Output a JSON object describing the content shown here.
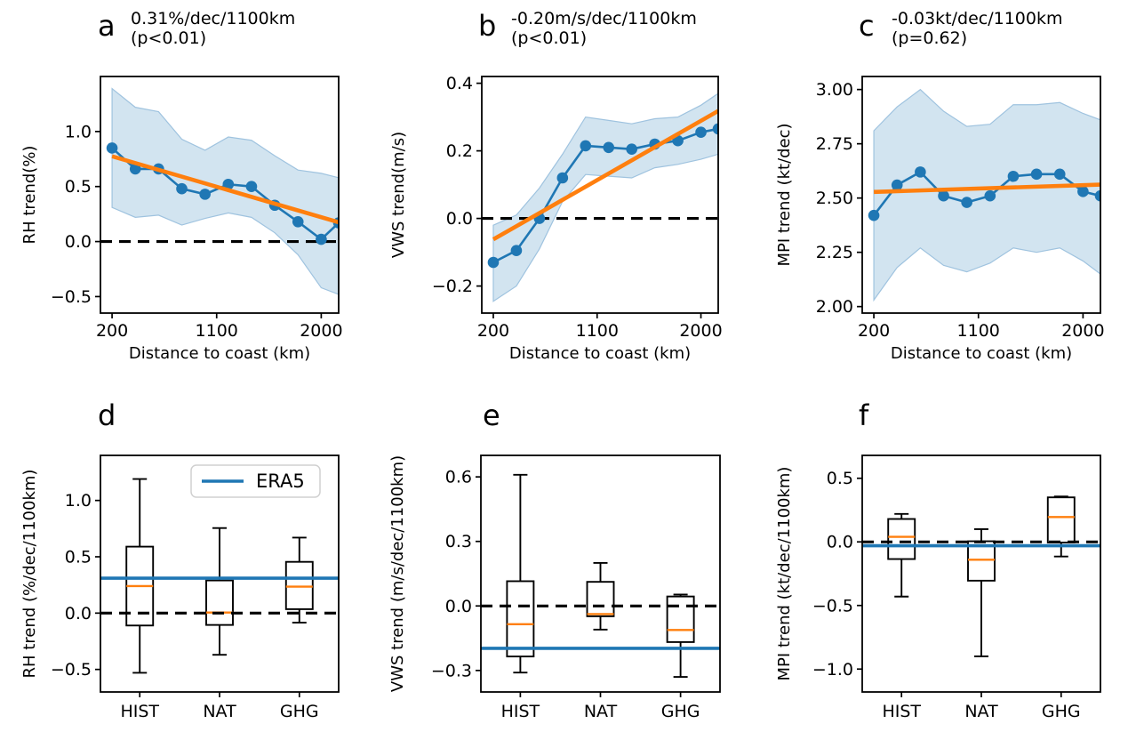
{
  "figure": {
    "panels": [
      {
        "id": "a",
        "letter": "a",
        "title_line1": "0.31%/dec/1100km",
        "title_line2": "(p<0.01)"
      },
      {
        "id": "b",
        "letter": "b",
        "title_line1": "-0.20m/s/dec/1100km",
        "title_line2": "(p<0.01)"
      },
      {
        "id": "c",
        "letter": "c",
        "title_line1": "-0.03kt/dec/1100km",
        "title_line2": "(p=0.62)"
      },
      {
        "id": "d",
        "letter": "d"
      },
      {
        "id": "e",
        "letter": "e"
      },
      {
        "id": "f",
        "letter": "f"
      }
    ]
  },
  "colors": {
    "blue": "#1f77b4",
    "orange": "#ff7f0e",
    "band_fill": "#d2e4f0",
    "band_edge": "#9fc3df",
    "black": "#000000",
    "legend_border": "#d0d0d0"
  },
  "chart_data": [
    {
      "panel": "a",
      "type": "line",
      "title": "0.31%/dec/1100km (p<0.01)",
      "xlabel": "Distance to coast (km)",
      "ylabel": "RH trend(%)",
      "x": [
        200,
        400,
        600,
        800,
        1000,
        1200,
        1400,
        1600,
        1800,
        2000,
        2150
      ],
      "y": [
        0.85,
        0.66,
        0.66,
        0.48,
        0.43,
        0.52,
        0.5,
        0.33,
        0.18,
        0.02,
        0.17
      ],
      "band_upper": [
        1.39,
        1.22,
        1.18,
        0.93,
        0.83,
        0.95,
        0.92,
        0.78,
        0.65,
        0.62,
        0.58
      ],
      "band_lower": [
        0.31,
        0.22,
        0.24,
        0.15,
        0.21,
        0.26,
        0.22,
        0.08,
        -0.12,
        -0.42,
        -0.48
      ],
      "trend_line": {
        "x": [
          200,
          2150
        ],
        "y": [
          0.775,
          0.175
        ]
      },
      "dashed_zero": 0,
      "xlim": [
        100,
        2150
      ],
      "ylim": [
        -0.65,
        1.5
      ],
      "xticks": [
        {
          "v": 200,
          "label": "200"
        },
        {
          "v": 1100,
          "label": "1100"
        },
        {
          "v": 2000,
          "label": "2000"
        }
      ],
      "yticks": [
        {
          "v": 1.0,
          "label": "1.0"
        },
        {
          "v": 0.5,
          "label": "0.5"
        },
        {
          "v": 0.0,
          "label": "0.0"
        },
        {
          "v": -0.5,
          "label": "−0.5"
        }
      ]
    },
    {
      "panel": "b",
      "type": "line",
      "title": "-0.20m/s/dec/1100km (p<0.01)",
      "xlabel": "Distance to coast (km)",
      "ylabel": "VWS trend(m/s)",
      "x": [
        200,
        400,
        600,
        800,
        1000,
        1200,
        1400,
        1600,
        1800,
        2000,
        2150
      ],
      "y": [
        -0.13,
        -0.095,
        0.0,
        0.12,
        0.215,
        0.21,
        0.205,
        0.22,
        0.23,
        0.255,
        0.265
      ],
      "band_upper": [
        -0.02,
        0.01,
        0.09,
        0.19,
        0.3,
        0.29,
        0.28,
        0.295,
        0.3,
        0.335,
        0.37
      ],
      "band_lower": [
        -0.245,
        -0.2,
        -0.09,
        0.05,
        0.13,
        0.125,
        0.12,
        0.15,
        0.16,
        0.175,
        0.19
      ],
      "trend_line": {
        "x": [
          200,
          2150
        ],
        "y": [
          -0.062,
          0.318
        ]
      },
      "dashed_zero": 0,
      "xlim": [
        100,
        2150
      ],
      "ylim": [
        -0.28,
        0.42
      ],
      "xticks": [
        {
          "v": 200,
          "label": "200"
        },
        {
          "v": 1100,
          "label": "1100"
        },
        {
          "v": 2000,
          "label": "2000"
        }
      ],
      "yticks": [
        {
          "v": 0.4,
          "label": "0.4"
        },
        {
          "v": 0.2,
          "label": "0.2"
        },
        {
          "v": 0.0,
          "label": "0.0"
        },
        {
          "v": -0.2,
          "label": "−0.2"
        }
      ]
    },
    {
      "panel": "c",
      "type": "line",
      "title": "-0.03kt/dec/1100km (p=0.62)",
      "xlabel": "Distance to coast (km)",
      "ylabel": "MPI trend (kt/dec)",
      "x": [
        200,
        400,
        600,
        800,
        1000,
        1200,
        1400,
        1600,
        1800,
        2000,
        2150
      ],
      "y": [
        2.42,
        2.56,
        2.62,
        2.51,
        2.48,
        2.51,
        2.6,
        2.61,
        2.61,
        2.53,
        2.51
      ],
      "band_upper": [
        2.81,
        2.92,
        3.0,
        2.9,
        2.83,
        2.84,
        2.93,
        2.93,
        2.94,
        2.89,
        2.86
      ],
      "band_lower": [
        2.03,
        2.18,
        2.27,
        2.19,
        2.16,
        2.2,
        2.27,
        2.25,
        2.27,
        2.21,
        2.15
      ],
      "trend_line": {
        "x": [
          200,
          2150
        ],
        "y": [
          2.528,
          2.562
        ]
      },
      "dashed_zero": null,
      "xlim": [
        100,
        2150
      ],
      "ylim": [
        1.97,
        3.06
      ],
      "xticks": [
        {
          "v": 200,
          "label": "200"
        },
        {
          "v": 1100,
          "label": "1100"
        },
        {
          "v": 2000,
          "label": "2000"
        }
      ],
      "yticks": [
        {
          "v": 3.0,
          "label": "3.00"
        },
        {
          "v": 2.75,
          "label": "2.75"
        },
        {
          "v": 2.5,
          "label": "2.50"
        },
        {
          "v": 2.25,
          "label": "2.25"
        },
        {
          "v": 2.0,
          "label": "2.00"
        }
      ]
    },
    {
      "panel": "d",
      "type": "box",
      "ylabel": "RH trend (%/dec/1100km)",
      "categories": [
        "HIST",
        "NAT",
        "GHG"
      ],
      "boxes": [
        {
          "whisker_low": -0.53,
          "q1": -0.11,
          "median": 0.24,
          "q3": 0.59,
          "whisker_high": 1.19
        },
        {
          "whisker_low": -0.37,
          "q1": -0.105,
          "median": 0.005,
          "q3": 0.29,
          "whisker_high": 0.755
        },
        {
          "whisker_low": -0.085,
          "q1": 0.035,
          "median": 0.235,
          "q3": 0.455,
          "whisker_high": 0.67
        }
      ],
      "era5_value": 0.31,
      "dashed_zero": 0,
      "ylim": [
        -0.7,
        1.4
      ],
      "yticks": [
        {
          "v": 1.0,
          "label": "1.0"
        },
        {
          "v": 0.5,
          "label": "0.5"
        },
        {
          "v": 0.0,
          "label": "0.0"
        },
        {
          "v": -0.5,
          "label": "−0.5"
        }
      ],
      "legend": {
        "label": "ERA5"
      }
    },
    {
      "panel": "e",
      "type": "box",
      "ylabel": "VWS trend (m/s/dec/1100km)",
      "categories": [
        "HIST",
        "NAT",
        "GHG"
      ],
      "boxes": [
        {
          "whisker_low": -0.31,
          "q1": -0.235,
          "median": -0.085,
          "q3": 0.115,
          "whisker_high": 0.61
        },
        {
          "whisker_low": -0.11,
          "q1": -0.048,
          "median": -0.038,
          "q3": 0.112,
          "whisker_high": 0.2
        },
        {
          "whisker_low": -0.33,
          "q1": -0.168,
          "median": -0.112,
          "q3": 0.044,
          "whisker_high": 0.053
        }
      ],
      "era5_value": -0.197,
      "dashed_zero": 0,
      "ylim": [
        -0.4,
        0.7
      ],
      "yticks": [
        {
          "v": 0.6,
          "label": "0.6"
        },
        {
          "v": 0.3,
          "label": "0.3"
        },
        {
          "v": 0.0,
          "label": "0.0"
        },
        {
          "v": -0.3,
          "label": "−0.3"
        }
      ]
    },
    {
      "panel": "f",
      "type": "box",
      "ylabel": "MPI trend (kt/dec/1100km)",
      "categories": [
        "HIST",
        "NAT",
        "GHG"
      ],
      "boxes": [
        {
          "whisker_low": -0.43,
          "q1": -0.135,
          "median": 0.04,
          "q3": 0.18,
          "whisker_high": 0.22
        },
        {
          "whisker_low": -0.9,
          "q1": -0.305,
          "median": -0.14,
          "q3": 0.005,
          "whisker_high": 0.1
        },
        {
          "whisker_low": -0.115,
          "q1": -0.005,
          "median": 0.195,
          "q3": 0.35,
          "whisker_high": 0.357
        }
      ],
      "era5_value": -0.03,
      "dashed_zero": 0,
      "ylim": [
        -1.18,
        0.68
      ],
      "yticks": [
        {
          "v": 0.5,
          "label": "0.5"
        },
        {
          "v": 0.0,
          "label": "0.0"
        },
        {
          "v": -0.5,
          "label": "−0.5"
        },
        {
          "v": -1.0,
          "label": "−1.0"
        }
      ]
    }
  ]
}
